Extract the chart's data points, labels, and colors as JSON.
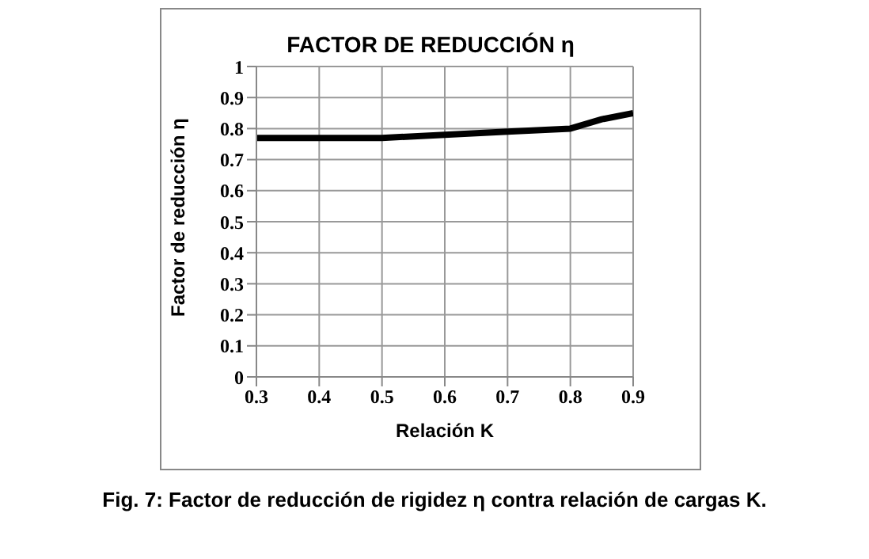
{
  "chart_data": {
    "type": "line",
    "title": "FACTOR DE REDUCCIÓN η",
    "xlabel": "Relación K",
    "ylabel": "Factor de reducción η",
    "annotations": [
      "Fig. 7: Factor de reducción de rigidez η contra relación de cargas K."
    ],
    "x": [
      0.3,
      0.4,
      0.5,
      0.6,
      0.7,
      0.8,
      0.85,
      0.9
    ],
    "series": [
      {
        "color": "#000000",
        "values": [
          0.77,
          0.77,
          0.77,
          0.78,
          0.79,
          0.8,
          0.83,
          0.85
        ]
      }
    ],
    "xlim": [
      0.3,
      0.9
    ],
    "xticks": [
      0.3,
      0.4,
      0.5,
      0.6,
      0.7,
      0.8,
      0.9
    ],
    "ylim": [
      0,
      1
    ],
    "yticks": [
      0,
      0.1,
      0.2,
      0.3,
      0.4,
      0.5,
      0.6,
      0.7,
      0.8,
      0.9,
      1
    ],
    "grid": true,
    "legend": false,
    "marker": "none",
    "line_style": "solid"
  }
}
